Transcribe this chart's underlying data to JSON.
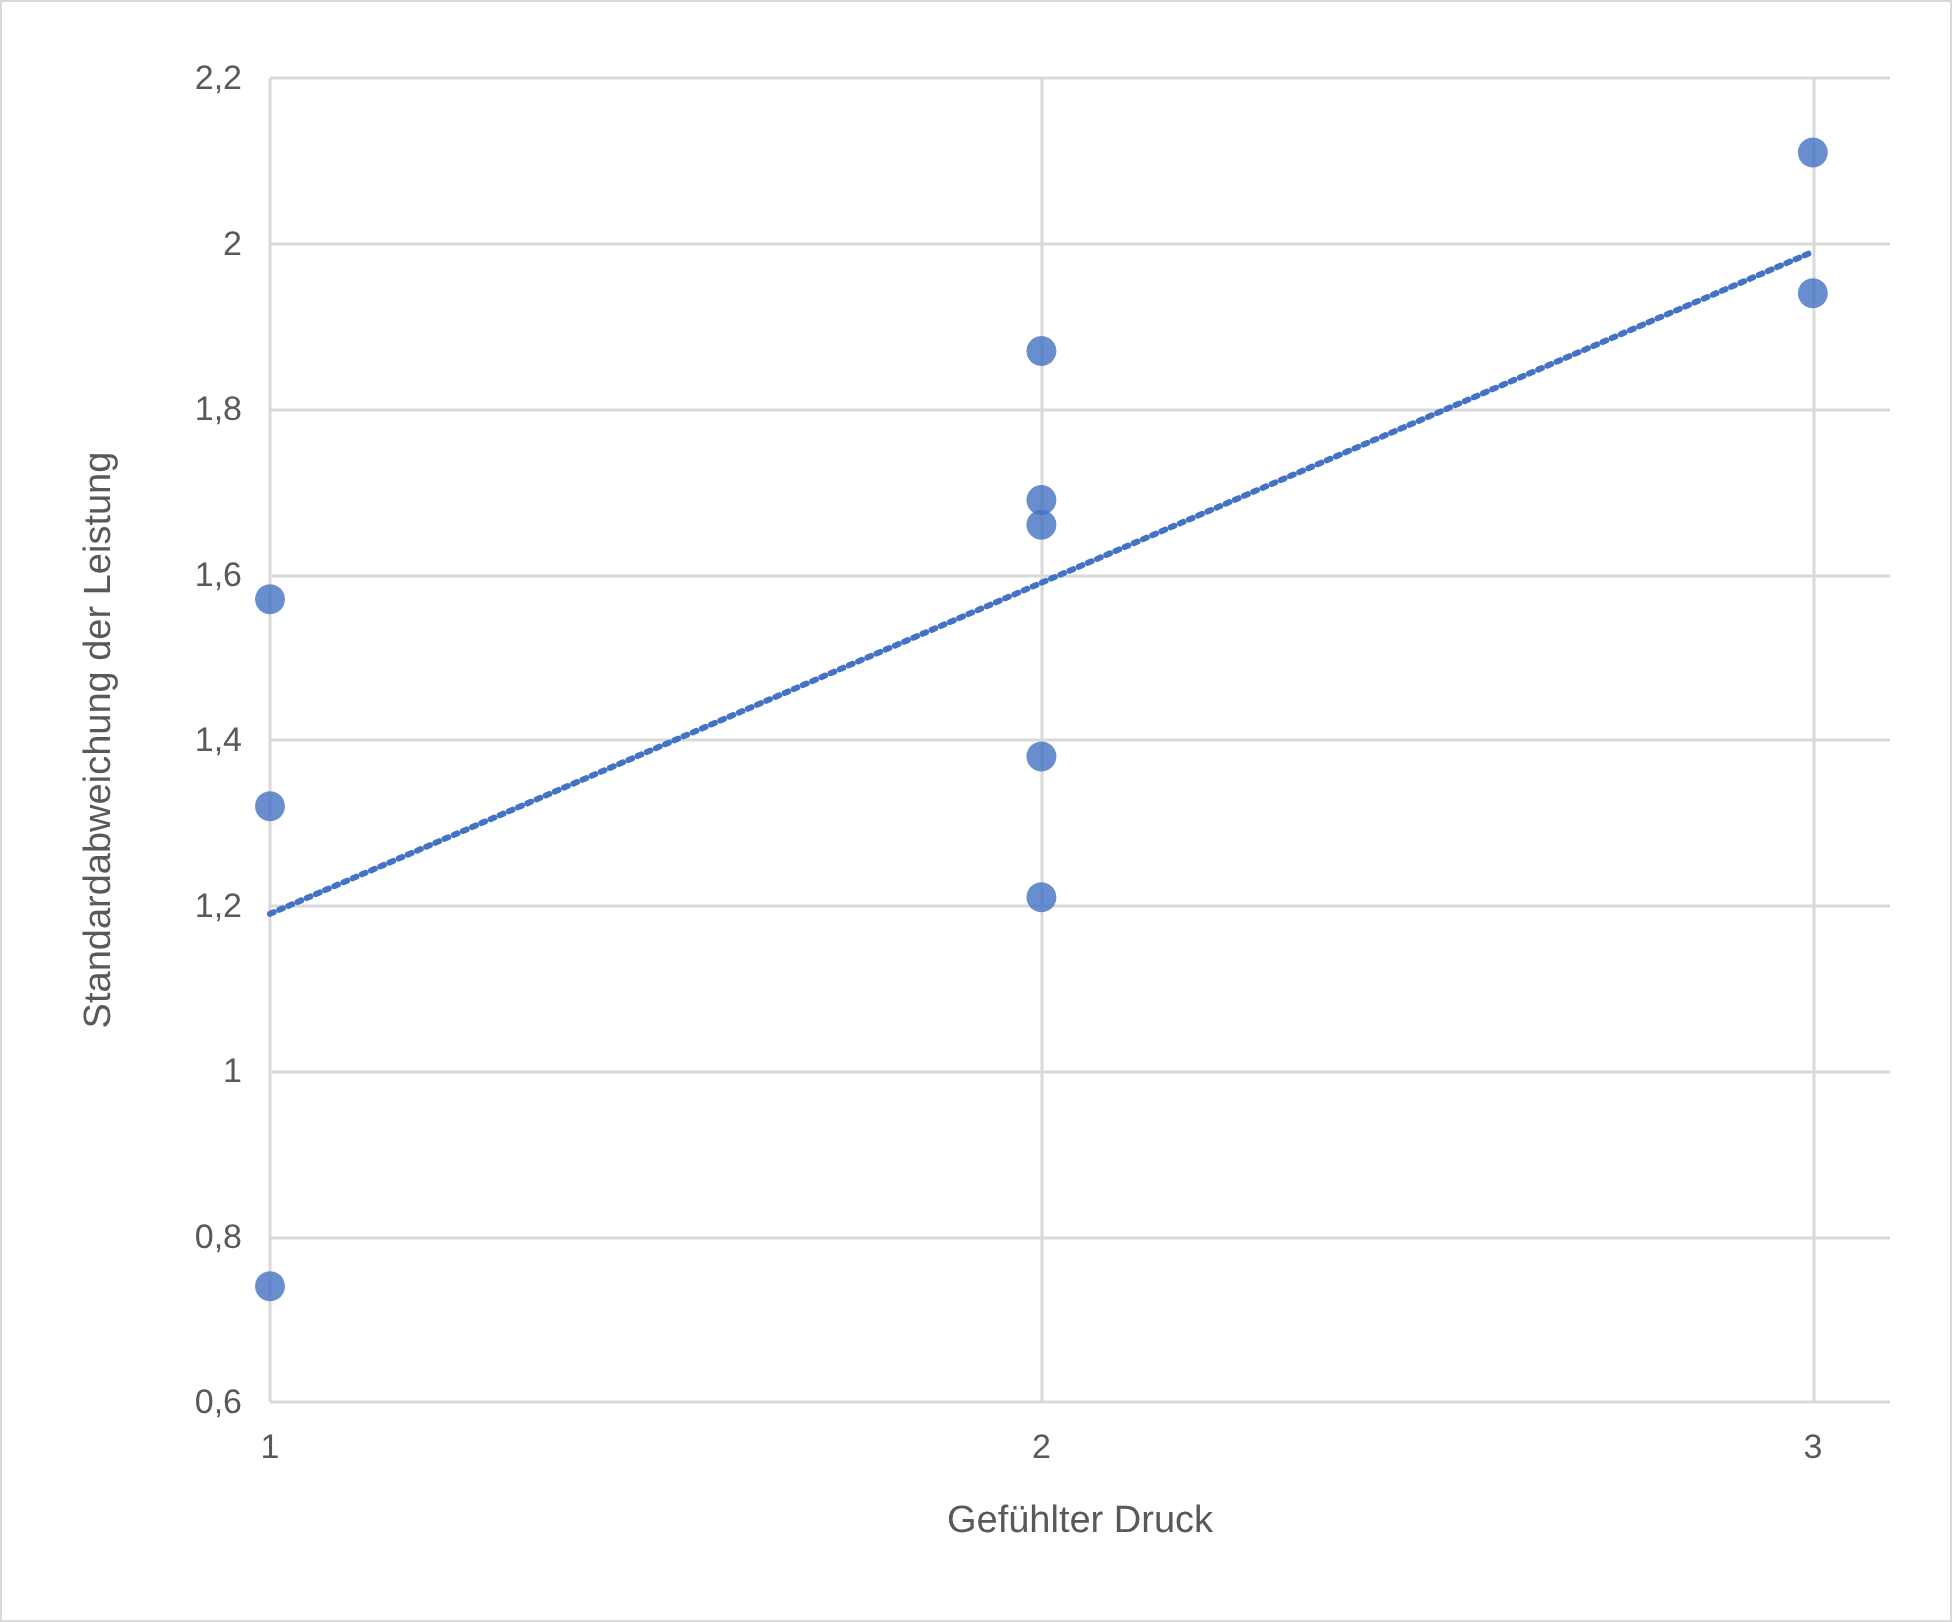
{
  "chart_data": {
    "type": "scatter",
    "xlabel": "Gefühlter Druck",
    "ylabel": "Standardabweichung der Leistung",
    "xlim": [
      1,
      3.1
    ],
    "xticks": [
      1,
      2,
      3
    ],
    "ylim": [
      0.6,
      2.2
    ],
    "yticks": [
      {
        "value": 0.6,
        "label": "0,6"
      },
      {
        "value": 0.8,
        "label": "0,8"
      },
      {
        "value": 1,
        "label": "1"
      },
      {
        "value": 1.2,
        "label": "1,2"
      },
      {
        "value": 1.4,
        "label": "1,4"
      },
      {
        "value": 1.6,
        "label": "1,6"
      },
      {
        "value": 1.8,
        "label": "1,8"
      },
      {
        "value": 2,
        "label": "2"
      },
      {
        "value": 2.2,
        "label": "2,2"
      }
    ],
    "grid": true,
    "marker": "circle",
    "series": [
      {
        "type": "scatter",
        "color": "#4472c4",
        "x": [
          1,
          1,
          1,
          2,
          2,
          2,
          2,
          2,
          3,
          3
        ],
        "values": [
          1.57,
          1.32,
          0.74,
          1.87,
          1.69,
          1.66,
          1.38,
          1.21,
          2.11,
          1.94
        ]
      },
      {
        "type": "line",
        "color": "#4472c4",
        "line_style": "dotted",
        "marker": "none",
        "x": [
          1,
          3
        ],
        "values": [
          1.19,
          1.99
        ]
      }
    ]
  }
}
